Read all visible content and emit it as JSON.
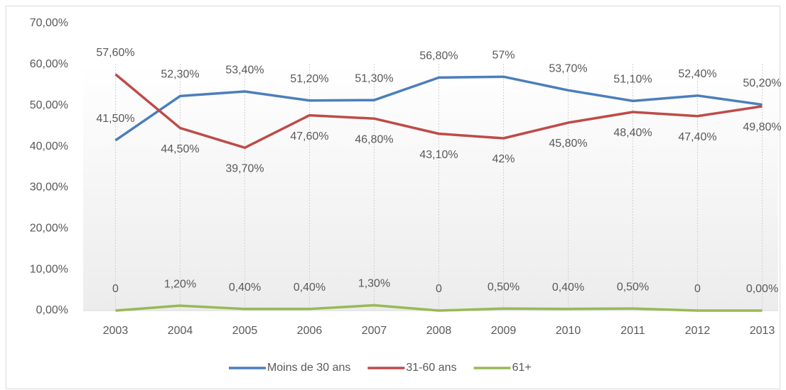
{
  "chart_data": {
    "type": "line",
    "categories": [
      "2003",
      "2004",
      "2005",
      "2006",
      "2007",
      "2008",
      "2009",
      "2010",
      "2011",
      "2012",
      "2013"
    ],
    "series": [
      {
        "name": "Moins de 30 ans",
        "color": "#4a7ebb",
        "values": [
          41.5,
          52.3,
          53.4,
          51.2,
          51.3,
          56.8,
          57,
          53.7,
          51.1,
          52.4,
          50.2
        ],
        "value_labels": [
          "41,50%",
          "52,30%",
          "53,40%",
          "51,20%",
          "51,30%",
          "56,80%",
          "57%",
          "53,70%",
          "51,10%",
          "52,40%",
          "50,20%"
        ]
      },
      {
        "name": "31-60 ans",
        "color": "#be4b48",
        "values": [
          57.6,
          44.5,
          39.7,
          47.6,
          46.8,
          43.1,
          42,
          45.8,
          48.4,
          47.4,
          49.8
        ],
        "value_labels": [
          "57,60%",
          "44,50%",
          "39,70%",
          "47,60%",
          "46,80%",
          "43,10%",
          "42%",
          "45,80%",
          "48,40%",
          "47,40%",
          "49,80%"
        ]
      },
      {
        "name": "61+",
        "color": "#98b954",
        "values": [
          0,
          1.2,
          0.4,
          0.4,
          1.3,
          0,
          0.5,
          0.4,
          0.5,
          0,
          0
        ],
        "value_labels": [
          "0",
          "1,20%",
          "0,40%",
          "0,40%",
          "1,30%",
          "0",
          "0,50%",
          "0,40%",
          "0,50%",
          "0",
          "0,00%"
        ]
      }
    ],
    "ylim": [
      0,
      70
    ],
    "yticks": [
      {
        "value": 0,
        "label": "0,00%"
      },
      {
        "value": 10,
        "label": "10,00%"
      },
      {
        "value": 20,
        "label": "20,00%"
      },
      {
        "value": 30,
        "label": "30,00%"
      },
      {
        "value": 40,
        "label": "40,00%"
      },
      {
        "value": 50,
        "label": "50,00%"
      },
      {
        "value": 60,
        "label": "60,00%"
      },
      {
        "value": 70,
        "label": "70,00%"
      }
    ],
    "legend": "bottom"
  }
}
